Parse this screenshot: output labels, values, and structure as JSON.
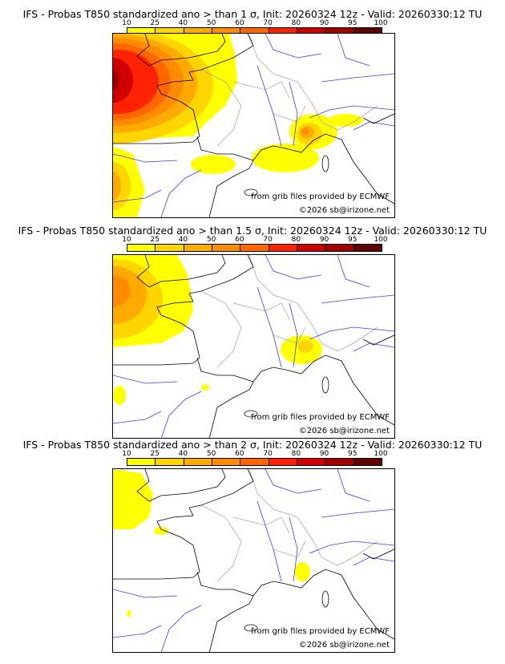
{
  "colors": [
    "#ffff00",
    "#ffd500",
    "#ffaa00",
    "#ff8c00",
    "#ff6600",
    "#ff2200",
    "#d00000",
    "#a00000",
    "#600000"
  ],
  "colorbar_ticks": [
    "10",
    "25",
    "40",
    "50",
    "60",
    "70",
    "80",
    "90",
    "95",
    "100"
  ],
  "panels": [
    {
      "title": "IFS - Probas T850  standardized ano > than 1 σ, Init: 20260324 12z - Valid: 20260330:12 TU",
      "credit_source": "from grib files provided by ECMWF",
      "credit_copyright": "©2026 sb@irizone.net"
    },
    {
      "title": "IFS - Probas T850  standardized ano > than 1.5 σ, Init: 20260324 12z - Valid: 20260330:12 TU",
      "credit_source": "from grib files provided by ECMWF",
      "credit_copyright": "©2026 sb@irizone.net"
    },
    {
      "title": "IFS - Probas T850  standardized ano > than 2 σ, Init: 20260324 12z - Valid: 20260330:12 TU",
      "credit_source": "from grib files provided by ECMWF",
      "credit_copyright": "©2026 sb@irizone.net"
    }
  ]
}
